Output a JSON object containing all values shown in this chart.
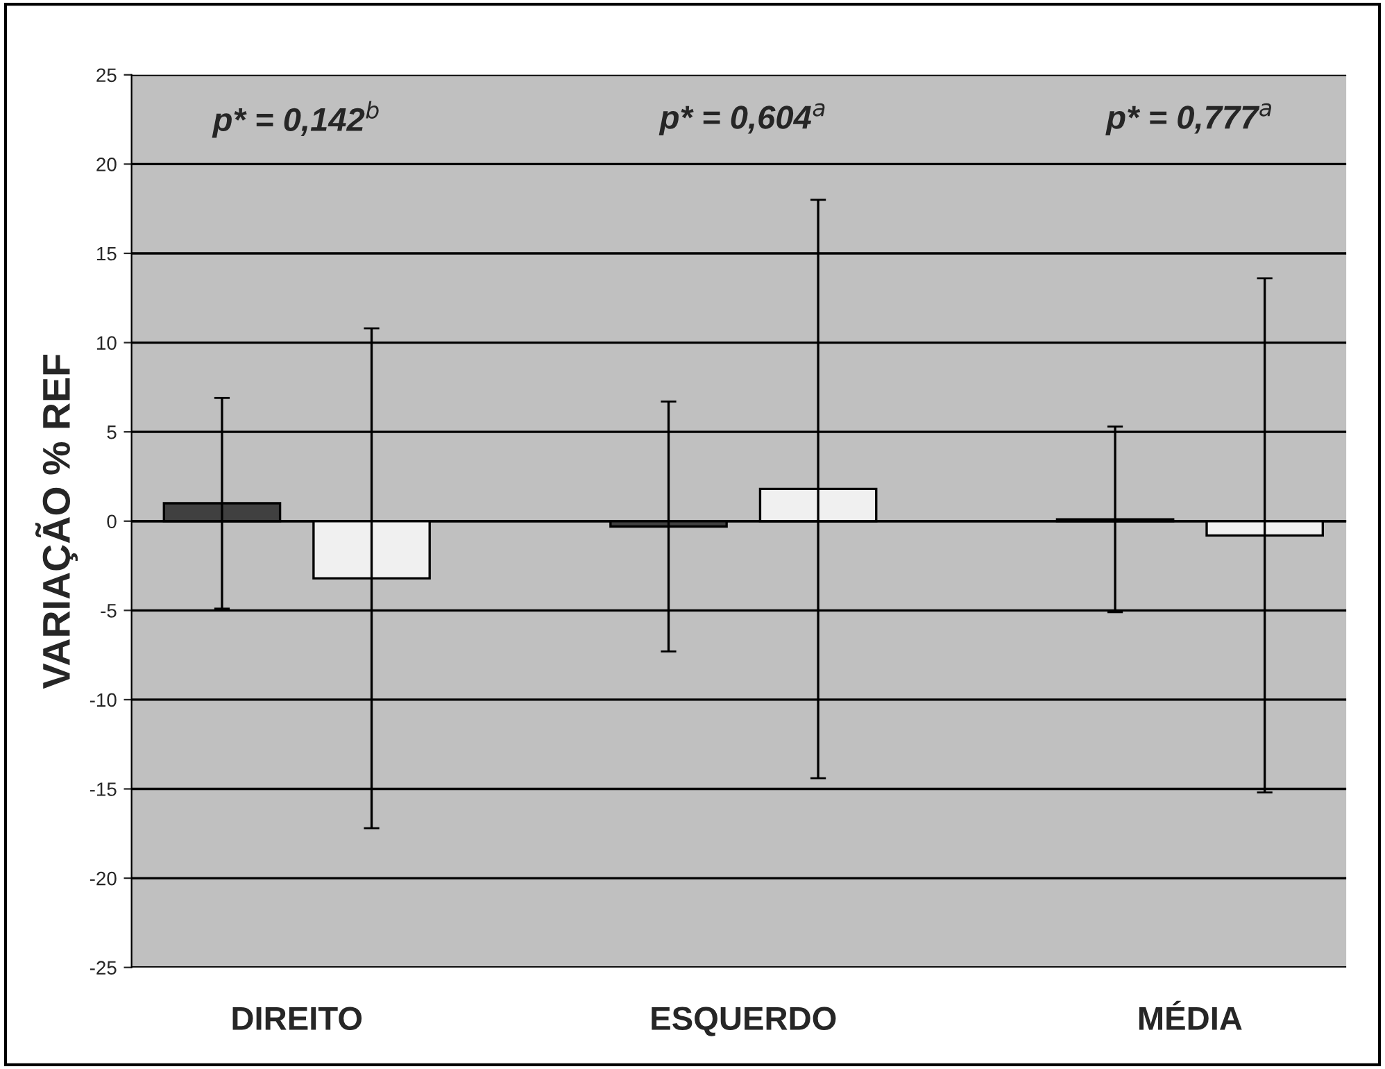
{
  "chart_data": {
    "type": "bar",
    "ylabel": "VARIAÇÃO % REF",
    "categories": [
      "DIREITO",
      "ESQUERDO",
      "MÉDIA"
    ],
    "series": [
      {
        "color": "#404040",
        "values": [
          1.0,
          -0.3,
          0.1
        ],
        "errors": [
          5.9,
          7.0,
          5.2
        ]
      },
      {
        "color": "#f0f0f0",
        "values": [
          -3.2,
          1.8,
          -0.8
        ],
        "errors": [
          14.0,
          16.2,
          14.4
        ]
      }
    ],
    "ylim": [
      -25,
      25
    ],
    "yticks": [
      -25,
      -20,
      -15,
      -10,
      -5,
      0,
      5,
      10,
      15,
      20,
      25
    ],
    "grid": "y",
    "legend": false,
    "annotations": [
      "p* = 0,142$^{b}$",
      "p* = 0,604$^{a}$",
      "p* = 0,777$^{a}$"
    ]
  }
}
